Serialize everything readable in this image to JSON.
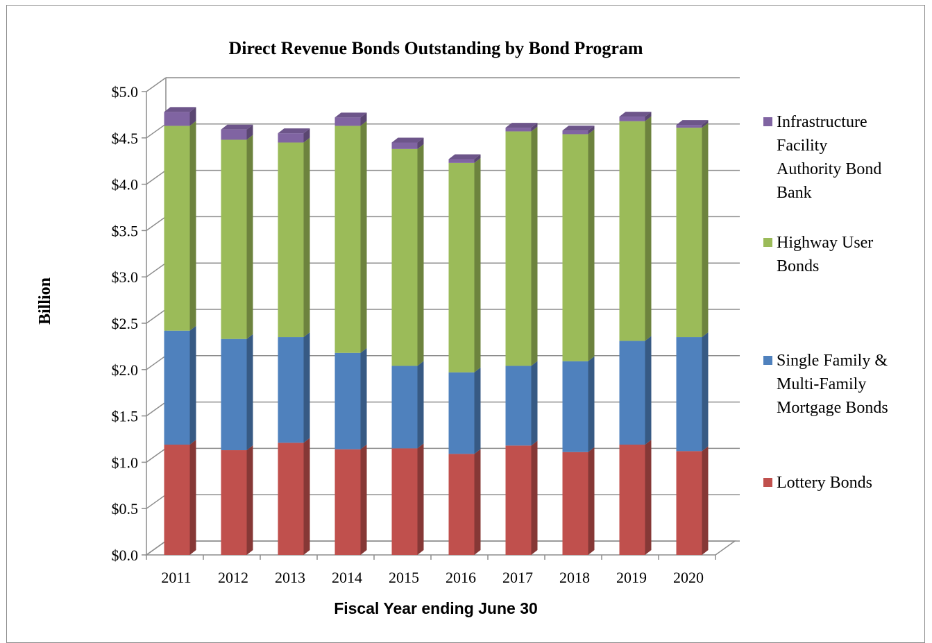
{
  "chart_data": {
    "type": "bar",
    "stacked": true,
    "three_d": true,
    "title": "Direct Revenue Bonds Outstanding by Bond Program",
    "ylabel": "Billion",
    "xlabel": "Fiscal Year ending June 30",
    "categories": [
      "2011",
      "2012",
      "2013",
      "2014",
      "2015",
      "2016",
      "2017",
      "2018",
      "2019",
      "2020"
    ],
    "ylim": [
      0,
      5
    ],
    "yticks": [
      0,
      0.5,
      1.0,
      1.5,
      2.0,
      2.5,
      3.0,
      3.5,
      4.0,
      4.5,
      5.0
    ],
    "ytick_labels": [
      "$0.0",
      "$0.5",
      "$1.0",
      "$1.5",
      "$2.0",
      "$2.5",
      "$3.0",
      "$3.5",
      "$4.0",
      "$4.5",
      "$5.0"
    ],
    "grid": true,
    "legend_position": "right",
    "series": [
      {
        "name": "Lottery Bonds",
        "color": "#c0504d",
        "values": [
          1.19,
          1.13,
          1.21,
          1.14,
          1.15,
          1.09,
          1.18,
          1.11,
          1.19,
          1.12
        ]
      },
      {
        "name": "Single Family & Multi-Family Mortgage Bonds",
        "color": "#4f81bd",
        "values": [
          1.23,
          1.2,
          1.14,
          1.04,
          0.89,
          0.88,
          0.86,
          0.98,
          1.12,
          1.23
        ]
      },
      {
        "name": "Highway User Bonds",
        "color": "#9bbb59",
        "values": [
          2.21,
          2.15,
          2.1,
          2.45,
          2.34,
          2.26,
          2.53,
          2.45,
          2.37,
          2.26
        ]
      },
      {
        "name": "Infrastructure Facility Authority Bond Bank",
        "color": "#8064a2",
        "values": [
          0.15,
          0.11,
          0.1,
          0.09,
          0.07,
          0.04,
          0.04,
          0.04,
          0.05,
          0.03
        ]
      }
    ],
    "legend_lines": [
      [
        "Infrastructure",
        "Facility",
        "Authority Bond",
        "Bank"
      ],
      [
        "Highway User",
        "Bonds"
      ],
      [
        "Single Family &",
        "Multi-Family",
        "Mortgage Bonds"
      ],
      [
        "Lottery Bonds"
      ]
    ]
  }
}
